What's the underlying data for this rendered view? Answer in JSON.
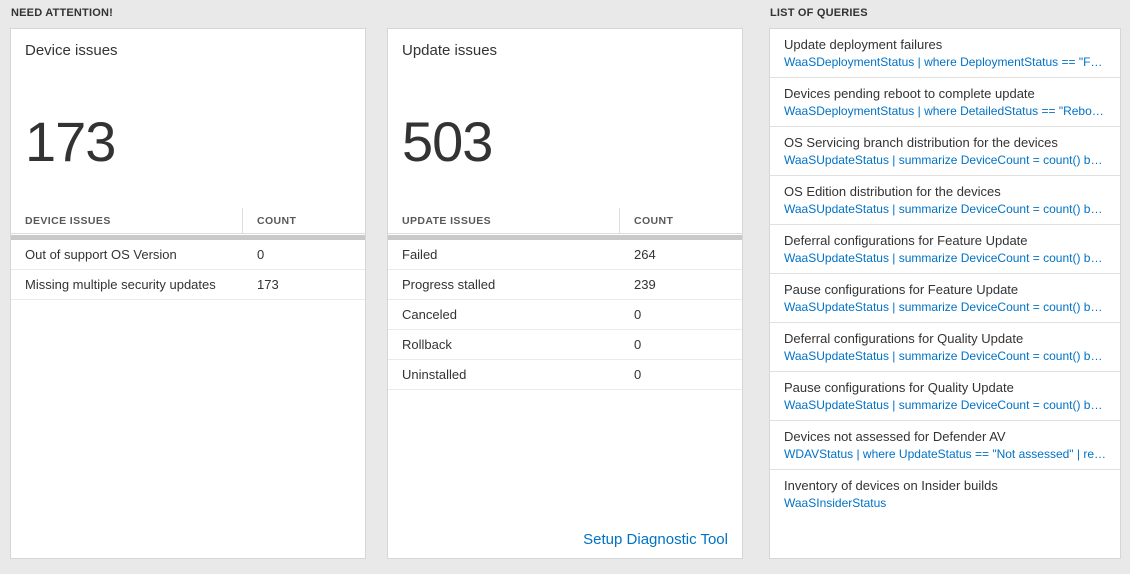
{
  "colors": {
    "accent": "#0072c6",
    "background": "#e9e9e9",
    "panel_border": "#d6d6d6",
    "divider_bar": "#c9c9c9"
  },
  "need_attention": {
    "header": "NEED ATTENTION!",
    "device_card": {
      "title": "Device issues",
      "count": "173",
      "columns": [
        "DEVICE ISSUES",
        "COUNT"
      ],
      "rows": [
        {
          "label": "Out of support OS Version",
          "count": "0"
        },
        {
          "label": "Missing multiple security updates",
          "count": "173"
        }
      ]
    },
    "update_card": {
      "title": "Update issues",
      "count": "503",
      "columns": [
        "UPDATE ISSUES",
        "COUNT"
      ],
      "rows": [
        {
          "label": "Failed",
          "count": "264"
        },
        {
          "label": "Progress stalled",
          "count": "239"
        },
        {
          "label": "Canceled",
          "count": "0"
        },
        {
          "label": "Rollback",
          "count": "0"
        },
        {
          "label": "Uninstalled",
          "count": "0"
        }
      ],
      "footer_link": "Setup Diagnostic Tool"
    }
  },
  "queries": {
    "header": "LIST OF QUERIES",
    "items": [
      {
        "title": "Update deployment failures",
        "query": "WaaSDeploymentStatus | where DeploymentStatus == \"Failed\" |…"
      },
      {
        "title": "Devices pending reboot to complete update",
        "query": "WaaSDeploymentStatus | where DetailedStatus == \"Reboot pend…"
      },
      {
        "title": "OS Servicing branch distribution for the devices",
        "query": "WaaSUpdateStatus | summarize DeviceCount = count() by OSSer…"
      },
      {
        "title": "OS Edition distribution for the devices",
        "query": "WaaSUpdateStatus | summarize DeviceCount = count() by OSEdit…"
      },
      {
        "title": "Deferral configurations for Feature Update",
        "query": "WaaSUpdateStatus | summarize DeviceCount = count() by Featur…"
      },
      {
        "title": "Pause configurations for Feature Update",
        "query": "WaaSUpdateStatus | summarize DeviceCount = count() by Featur…"
      },
      {
        "title": "Deferral configurations for Quality Update",
        "query": "WaaSUpdateStatus | summarize DeviceCount = count() by Qualit…"
      },
      {
        "title": "Pause configurations for Quality Update",
        "query": "WaaSUpdateStatus | summarize DeviceCount = count() by Qualit…"
      },
      {
        "title": "Devices not assessed for Defender AV",
        "query": "WDAVStatus | where UpdateStatus == \"Not assessed\" | render ta…"
      },
      {
        "title": "Inventory of devices on Insider builds",
        "query": "WaaSInsiderStatus"
      }
    ]
  }
}
